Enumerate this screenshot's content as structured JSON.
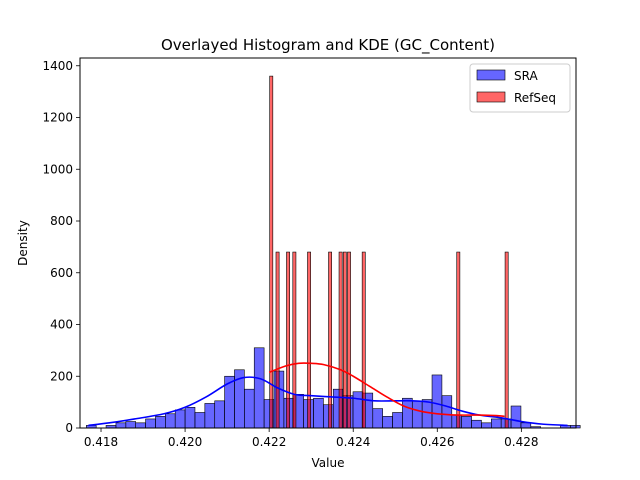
{
  "chart_data": {
    "type": "bar",
    "title": "Overlayed Histogram and KDE (GC_Content)",
    "xlabel": "Value",
    "ylabel": "Density",
    "xlim": [
      0.4175,
      0.4293
    ],
    "ylim": [
      0,
      1430
    ],
    "x_ticks": [
      0.418,
      0.42,
      0.422,
      0.424,
      0.426,
      0.428
    ],
    "x_tick_labels": [
      "0.418",
      "0.420",
      "0.422",
      "0.424",
      "0.426",
      "0.428"
    ],
    "y_ticks": [
      0,
      200,
      400,
      600,
      800,
      1000,
      1200,
      1400
    ],
    "y_tick_labels": [
      "0",
      "200",
      "400",
      "600",
      "800",
      "1000",
      "1200",
      "1400"
    ],
    "grid": false,
    "legend_position": "top-right",
    "series": [
      {
        "name": "SRA",
        "kind": "histogram",
        "color": "#0000ff",
        "bin_start": 0.41765,
        "bin_width": 0.000235,
        "values": [
          10,
          0,
          10,
          20,
          25,
          20,
          35,
          45,
          55,
          70,
          80,
          60,
          95,
          105,
          200,
          225,
          150,
          310,
          110,
          220,
          115,
          130,
          110,
          115,
          90,
          150,
          125,
          140,
          135,
          75,
          45,
          60,
          115,
          105,
          110,
          205,
          125,
          50,
          45,
          30,
          20,
          35,
          35,
          85,
          20,
          5,
          0,
          0,
          10,
          10
        ]
      },
      {
        "name": "RefSeq",
        "kind": "histogram",
        "color": "#ff0000",
        "bars": [
          {
            "x": 0.42205,
            "v": 1360
          },
          {
            "x": 0.4222,
            "v": 680
          },
          {
            "x": 0.42245,
            "v": 680
          },
          {
            "x": 0.4226,
            "v": 680
          },
          {
            "x": 0.42295,
            "v": 680
          },
          {
            "x": 0.42345,
            "v": 680
          },
          {
            "x": 0.4237,
            "v": 680
          },
          {
            "x": 0.4238,
            "v": 680
          },
          {
            "x": 0.4239,
            "v": 680
          },
          {
            "x": 0.42425,
            "v": 680
          },
          {
            "x": 0.4265,
            "v": 680
          },
          {
            "x": 0.42765,
            "v": 680
          }
        ],
        "bar_width": 7.5e-05
      },
      {
        "name": "SRA KDE",
        "kind": "line",
        "color": "#0000ff",
        "x": [
          0.4177,
          0.4182,
          0.4188,
          0.4195,
          0.42,
          0.4205,
          0.421,
          0.4214,
          0.4218,
          0.4222,
          0.4226,
          0.423,
          0.4235,
          0.424,
          0.4245,
          0.425,
          0.4254,
          0.4258,
          0.4262,
          0.4266,
          0.427,
          0.4275,
          0.428,
          0.4285,
          0.4291
        ],
        "y": [
          10,
          20,
          35,
          55,
          80,
          120,
          170,
          195,
          190,
          155,
          130,
          125,
          120,
          115,
          105,
          105,
          105,
          100,
          85,
          65,
          50,
          40,
          25,
          15,
          10
        ]
      },
      {
        "name": "RefSeq KDE",
        "kind": "line",
        "color": "#ff0000",
        "x": [
          0.422,
          0.4224,
          0.4227,
          0.423,
          0.4233,
          0.4237,
          0.424,
          0.4244,
          0.4248,
          0.4252,
          0.4256,
          0.426,
          0.4265,
          0.427,
          0.4274,
          0.4276
        ],
        "y": [
          215,
          240,
          250,
          250,
          245,
          225,
          200,
          160,
          120,
          85,
          65,
          55,
          50,
          50,
          48,
          45
        ]
      }
    ],
    "legend": [
      {
        "label": "SRA",
        "color": "#0000ff"
      },
      {
        "label": "RefSeq",
        "color": "#ff0000"
      }
    ]
  }
}
